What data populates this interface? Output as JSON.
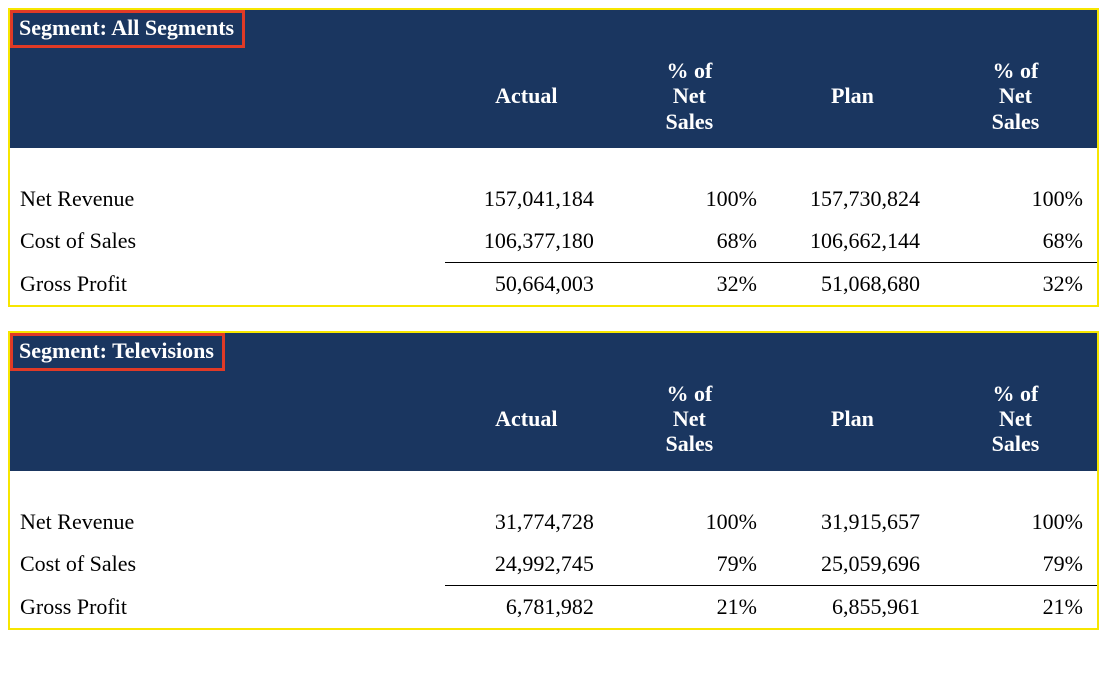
{
  "style": {
    "header_bg": "#1a3660",
    "header_text": "#ffffff",
    "segment_border": "#f7e600",
    "title_highlight_border": "#e03a26",
    "body_text": "#000000",
    "rule_color": "#000000",
    "font_family": "Times New Roman",
    "header_fontsize_pt": 16,
    "body_fontsize_pt": 16
  },
  "columns": {
    "label": "",
    "actual": "Actual",
    "actual_pct": "% of\nNet\nSales",
    "plan": "Plan",
    "plan_pct": "% of\nNet\nSales"
  },
  "segments": [
    {
      "title": "Segment: All Segments",
      "rows": [
        {
          "label": "Net Revenue",
          "actual": "157,041,184",
          "actual_pct": "100%",
          "plan": "157,730,824",
          "plan_pct": "100%",
          "total": false
        },
        {
          "label": "Cost of Sales",
          "actual": "106,377,180",
          "actual_pct": "68%",
          "plan": "106,662,144",
          "plan_pct": "68%",
          "total": false
        },
        {
          "label": "Gross Profit",
          "actual": "50,664,003",
          "actual_pct": "32%",
          "plan": "51,068,680",
          "plan_pct": "32%",
          "total": true
        }
      ]
    },
    {
      "title": "Segment: Televisions",
      "rows": [
        {
          "label": "Net Revenue",
          "actual": "31,774,728",
          "actual_pct": "100%",
          "plan": "31,915,657",
          "plan_pct": "100%",
          "total": false
        },
        {
          "label": "Cost of Sales",
          "actual": "24,992,745",
          "actual_pct": "79%",
          "plan": "25,059,696",
          "plan_pct": "79%",
          "total": false
        },
        {
          "label": "Gross Profit",
          "actual": "6,781,982",
          "actual_pct": "21%",
          "plan": "6,855,961",
          "plan_pct": "21%",
          "total": true
        }
      ]
    }
  ]
}
